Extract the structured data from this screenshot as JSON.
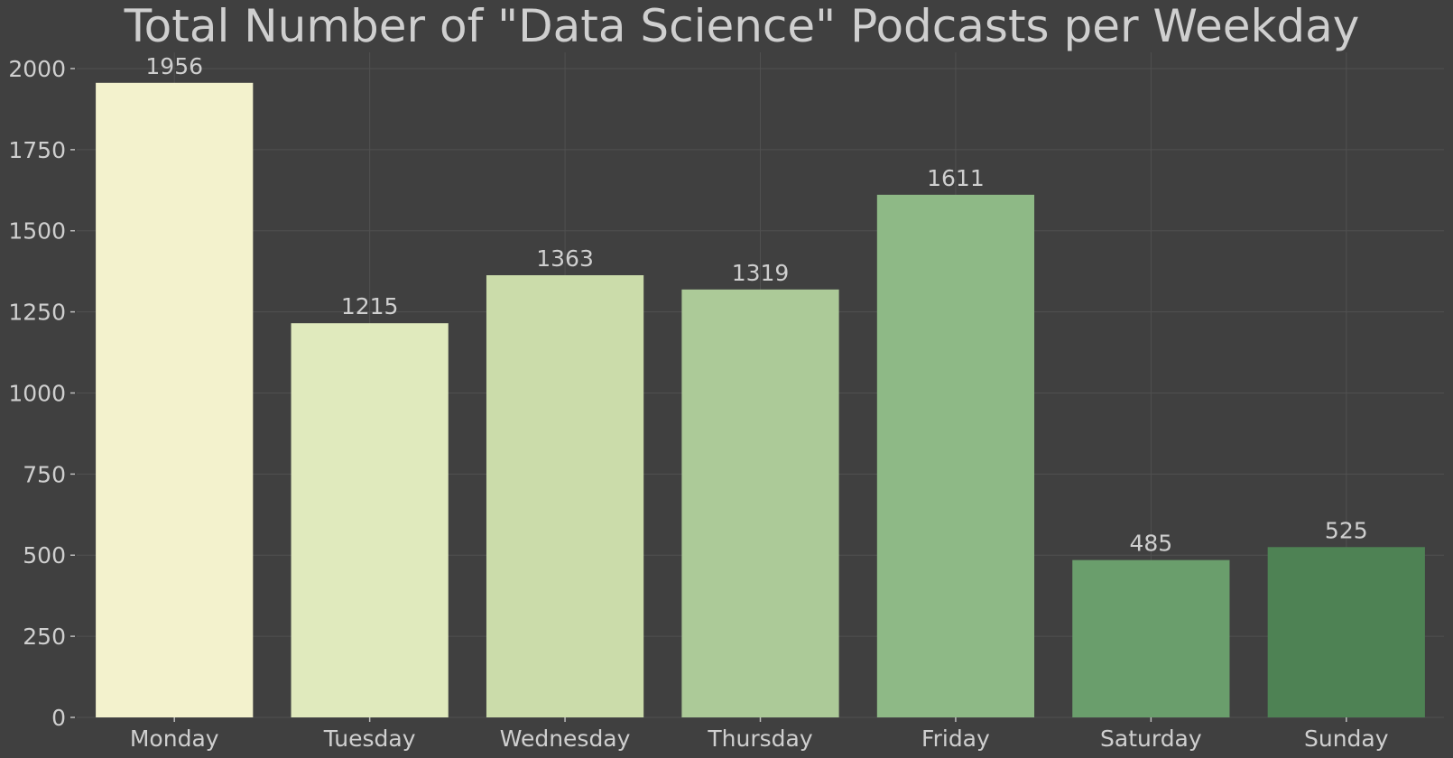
{
  "chart_data": {
    "type": "bar",
    "title": "Total Number of \"Data Science\" Podcasts per Weekday",
    "xlabel": "",
    "ylabel": "",
    "categories": [
      "Monday",
      "Tuesday",
      "Wednesday",
      "Thursday",
      "Friday",
      "Saturday",
      "Sunday"
    ],
    "values": [
      1956,
      1215,
      1363,
      1319,
      1611,
      485,
      525
    ],
    "value_labels": [
      "1956",
      "1215",
      "1363",
      "1319",
      "1611",
      "485",
      "525"
    ],
    "yticks": [
      0,
      250,
      500,
      750,
      1000,
      1250,
      1500,
      1750,
      2000
    ],
    "ytick_labels": [
      "0",
      "250",
      "500",
      "750",
      "1000",
      "1250",
      "1500",
      "1750",
      "2000"
    ],
    "ylim": [
      0,
      2050
    ],
    "grid": true,
    "bar_colors": [
      "#f3f2cd",
      "#e0eabd",
      "#cbdcaa",
      "#acca98",
      "#8eb986",
      "#6a9e6c",
      "#4e8254"
    ],
    "background": "#404040",
    "text_color": "#cfcfcf"
  }
}
